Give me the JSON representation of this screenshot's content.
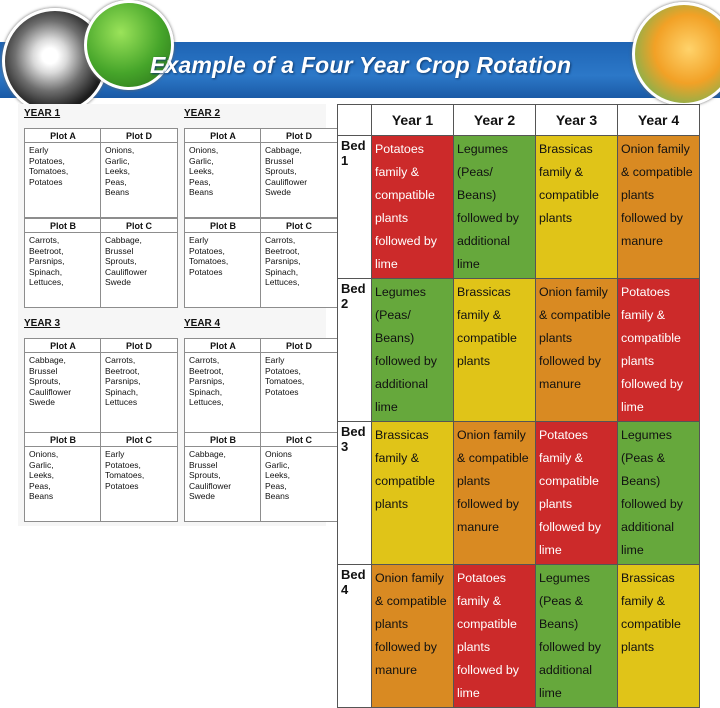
{
  "title": "Example of a Four Year Crop Rotation",
  "images": {
    "left": "dandelion-seedhead-photo",
    "leaf": "green-leaf-photo",
    "right": "yellow-tulip-photo"
  },
  "years": [
    {
      "label": "YEAR 1",
      "plots": [
        {
          "name": "Plot A",
          "crops": "Early\nPotatoes,\nTomatoes,\nPotatoes"
        },
        {
          "name": "Plot D",
          "crops": "Onions,\nGarlic,\nLeeks,\nPeas,\nBeans"
        },
        {
          "name": "Plot B",
          "crops": "Carrots,\nBeetroot,\nParsnips,\nSpinach,\nLettuces,"
        },
        {
          "name": "Plot C",
          "crops": "Cabbage,\nBrussel\nSprouts,\nCauliflower\nSwede"
        }
      ]
    },
    {
      "label": "YEAR 2",
      "plots": [
        {
          "name": "Plot A",
          "crops": "Onions,\nGarlic,\nLeeks,\nPeas,\nBeans"
        },
        {
          "name": "Plot D",
          "crops": "Cabbage,\nBrussel\nSprouts,\nCauliflower\nSwede"
        },
        {
          "name": "Plot B",
          "crops": "Early\nPotatoes,\nTomatoes,\nPotatoes"
        },
        {
          "name": "Plot C",
          "crops": "Carrots,\nBeetroot,\nParsnips,\nSpinach,\nLettuces,"
        }
      ]
    },
    {
      "label": "YEAR 3",
      "plots": [
        {
          "name": "Plot A",
          "crops": "Cabbage,\nBrussel\nSprouts,\nCauliflower\nSwede"
        },
        {
          "name": "Plot D",
          "crops": "Carrots,\nBeetroot,\nParsnips,\nSpinach,\nLettuces"
        },
        {
          "name": "Plot B",
          "crops": "Onions,\nGarlic,\nLeeks,\nPeas,\nBeans"
        },
        {
          "name": "Plot C",
          "crops": "Early\nPotatoes,\nTomatoes,\nPotatoes"
        }
      ]
    },
    {
      "label": "YEAR 4",
      "plots": [
        {
          "name": "Plot A",
          "crops": "Carrots,\nBeetroot,\nParsnips,\nSpinach,\nLettuces,"
        },
        {
          "name": "Plot D",
          "crops": "Early\nPotatoes,\nTomatoes,\nPotatoes"
        },
        {
          "name": "Plot B",
          "crops": "Cabbage,\nBrussel\nSprouts,\nCauliflower\nSwede"
        },
        {
          "name": "Plot C",
          "crops": "Onions\nGarlic,\nLeeks,\nPeas,\nBeans"
        }
      ]
    }
  ],
  "table": {
    "headers": [
      "",
      "Year 1",
      "Year 2",
      "Year 3",
      "Year 4"
    ],
    "colors": {
      "red": "#cc2a2a",
      "yellow": "#e0c418",
      "green": "#66a83c",
      "orange": "#d98a22"
    },
    "rows": [
      {
        "bed": "Bed 1",
        "cells": [
          {
            "text": "Potatoes family & compatible plants followed by lime",
            "color": "red"
          },
          {
            "text": "Legumes (Peas/ Beans) followed by additional lime",
            "color": "green"
          },
          {
            "text": "Brassicas family & compatible plants",
            "color": "yellow"
          },
          {
            "text": "Onion family & compatible plants followed by manure",
            "color": "orange"
          }
        ]
      },
      {
        "bed": "Bed 2",
        "cells": [
          {
            "text": "Legumes (Peas/ Beans) followed by additional lime",
            "color": "green"
          },
          {
            "text": "Brassicas family & compatible plants",
            "color": "yellow"
          },
          {
            "text": "Onion family & compatible plants followed by manure",
            "color": "orange"
          },
          {
            "text": "Potatoes family & compatible plants followed by lime",
            "color": "red"
          }
        ]
      },
      {
        "bed": "Bed 3",
        "cells": [
          {
            "text": "Brassicas family & compatible plants",
            "color": "yellow"
          },
          {
            "text": "Onion family & compatible plants followed by manure",
            "color": "orange"
          },
          {
            "text": "Potatoes family & compatible plants followed by lime",
            "color": "red"
          },
          {
            "text": "Legumes (Peas & Beans) followed by additional lime",
            "color": "green"
          }
        ]
      },
      {
        "bed": "Bed 4",
        "cells": [
          {
            "text": "Onion family & compatible plants followed by manure",
            "color": "orange"
          },
          {
            "text": "Potatoes family & compatible plants followed by lime",
            "color": "red"
          },
          {
            "text": "Legumes (Peas & Beans) followed by additional lime",
            "color": "green"
          },
          {
            "text": "Brassicas family & compatible plants",
            "color": "yellow"
          }
        ]
      }
    ]
  }
}
